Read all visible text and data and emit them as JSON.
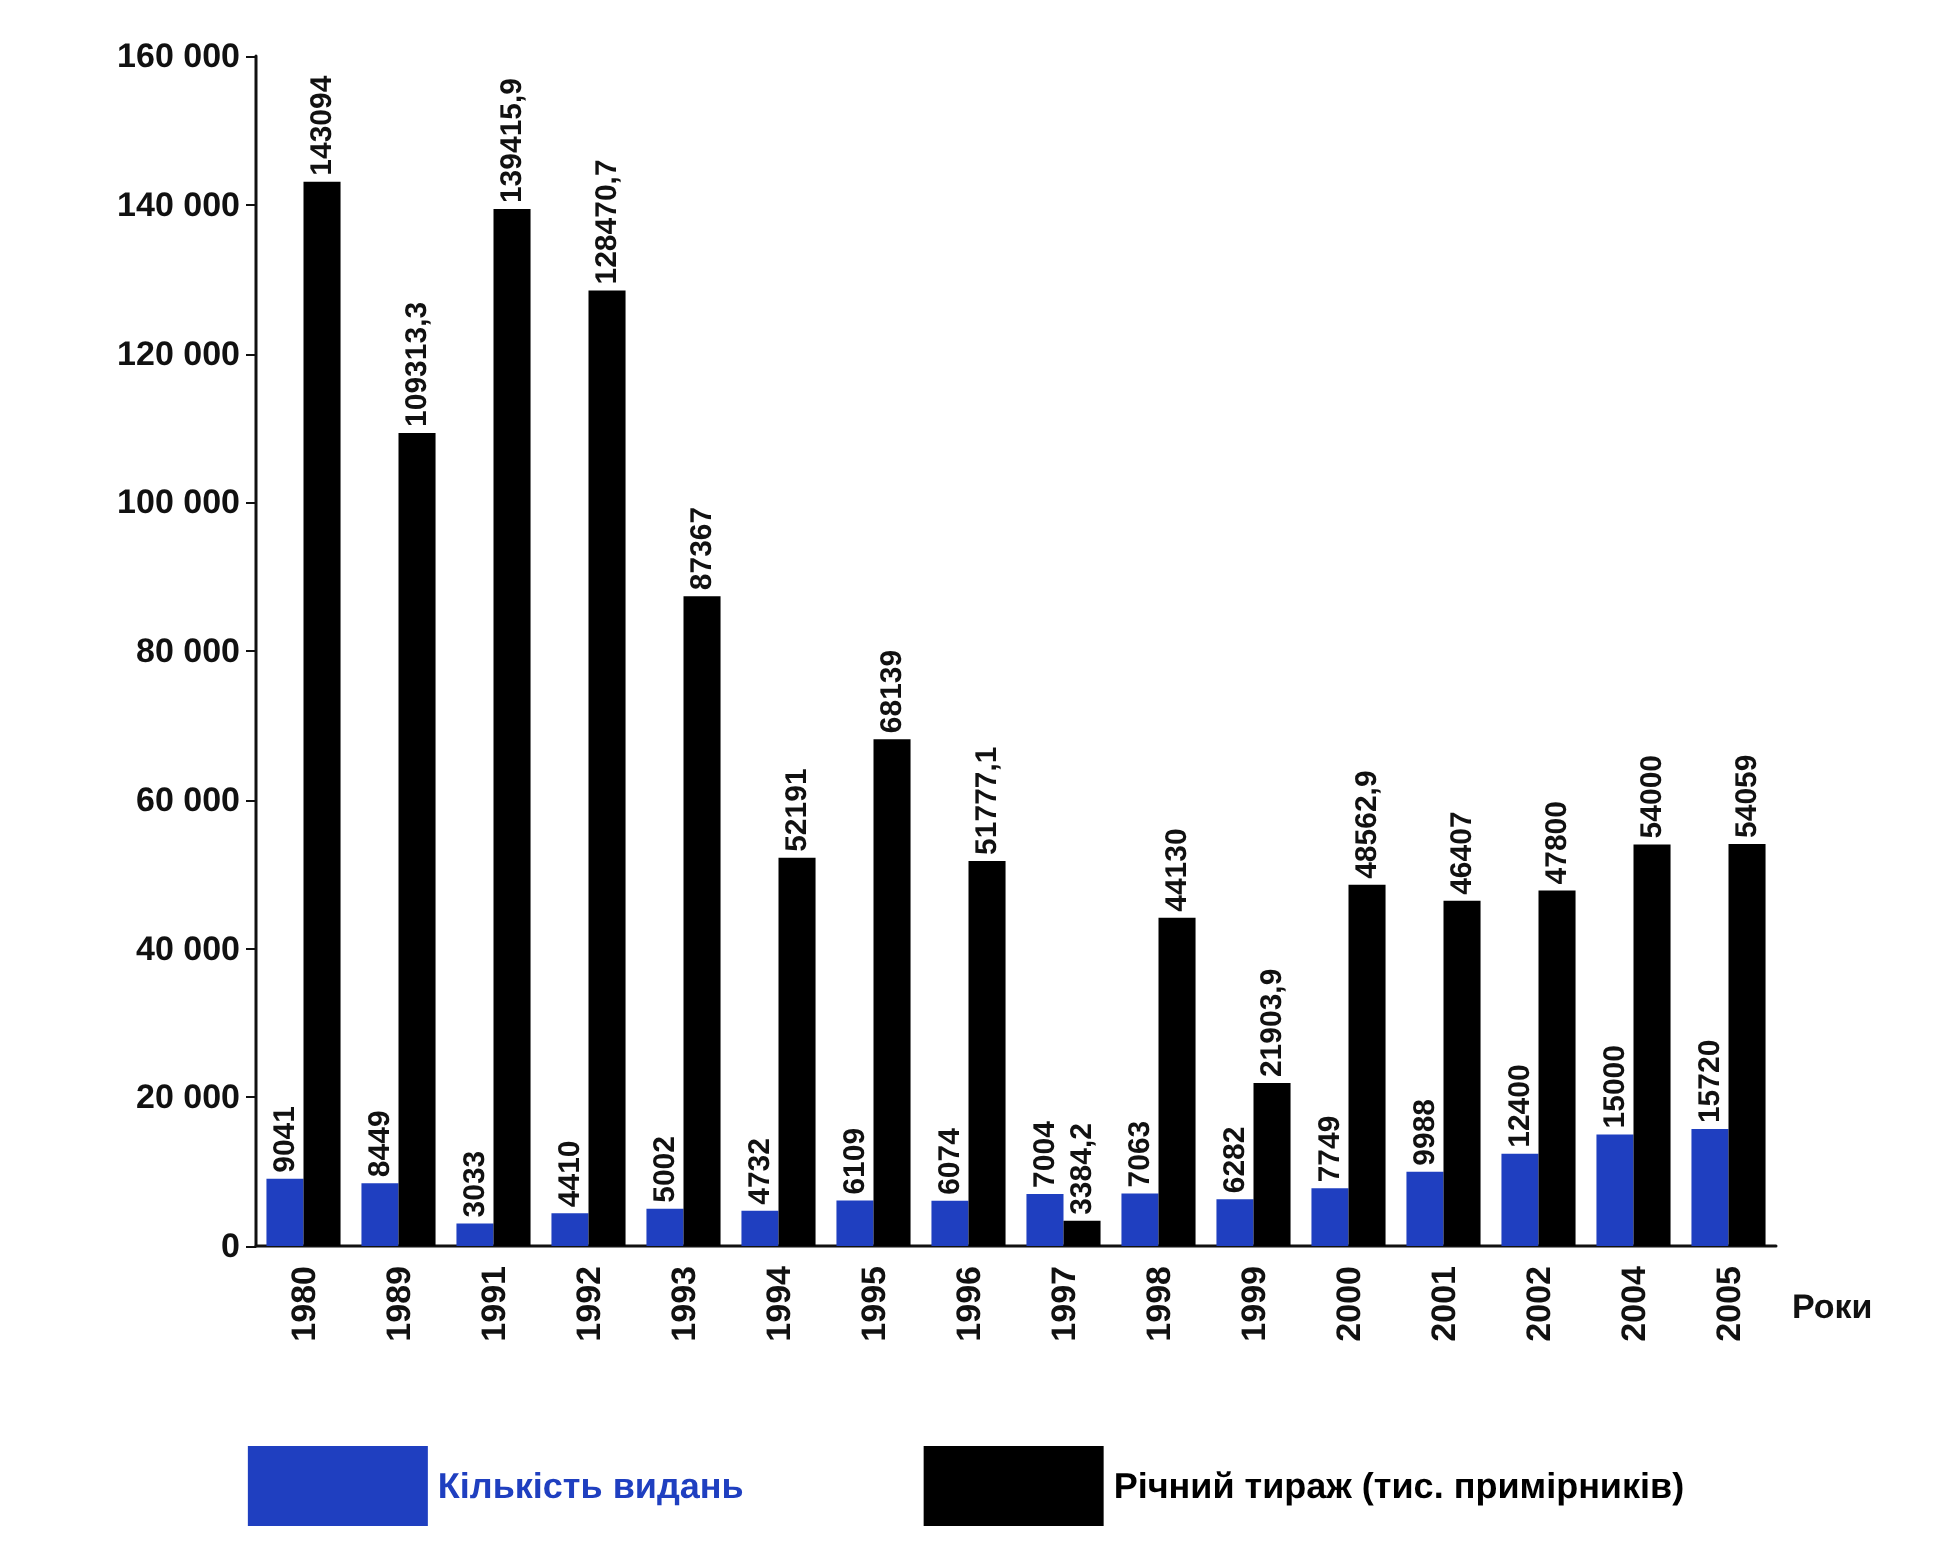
{
  "chart_data": {
    "type": "bar",
    "xlabel": "Роки",
    "categories": [
      "1980",
      "1989",
      "1991",
      "1992",
      "1993",
      "1994",
      "1995",
      "1996",
      "1997",
      "1998",
      "1999",
      "2000",
      "2001",
      "2002",
      "2004",
      "2005"
    ],
    "series": [
      {
        "name": "Кількість видань",
        "color": "#1f3fc0",
        "values": [
          9041,
          8449,
          3033,
          4410,
          5002,
          4732,
          6109,
          6074,
          7004,
          7063,
          6282,
          7749,
          9988,
          12400,
          15000,
          15720
        ],
        "value_labels": [
          "9041",
          "8449",
          "3033",
          "4410",
          "5002",
          "4732",
          "6109",
          "6074",
          "7004",
          "7063",
          "6282",
          "7749",
          "9988",
          "12400",
          "15000",
          "15720"
        ]
      },
      {
        "name": "Річний тираж (тис. примірників)",
        "color": "#000000",
        "values": [
          143094,
          109313.3,
          139415.9,
          128470.7,
          87367,
          52191,
          68139,
          51777.1,
          3384.2,
          44130,
          21903.9,
          48562.9,
          46407,
          47800,
          54000,
          54059
        ],
        "value_labels": [
          "143094",
          "109313,3",
          "139415,9",
          "128470,7",
          "87367",
          "52191",
          "68139",
          "51777,1",
          "3384,2",
          "44130",
          "21903,9",
          "48562,9",
          "46407",
          "47800",
          "54000",
          "54059"
        ]
      }
    ],
    "ylim": [
      0,
      160000
    ],
    "yticks": [
      {
        "value": 0,
        "label": "0"
      },
      {
        "value": 20000,
        "label": "20 000"
      },
      {
        "value": 40000,
        "label": "40 000"
      },
      {
        "value": 60000,
        "label": "60 000"
      },
      {
        "value": 80000,
        "label": "80 000"
      },
      {
        "value": 100000,
        "label": "100 000"
      },
      {
        "value": 120000,
        "label": "120 000"
      },
      {
        "value": 140000,
        "label": "140 000"
      },
      {
        "value": 160000,
        "label": "160 000"
      }
    ],
    "grid": false,
    "legend": "bottom"
  }
}
